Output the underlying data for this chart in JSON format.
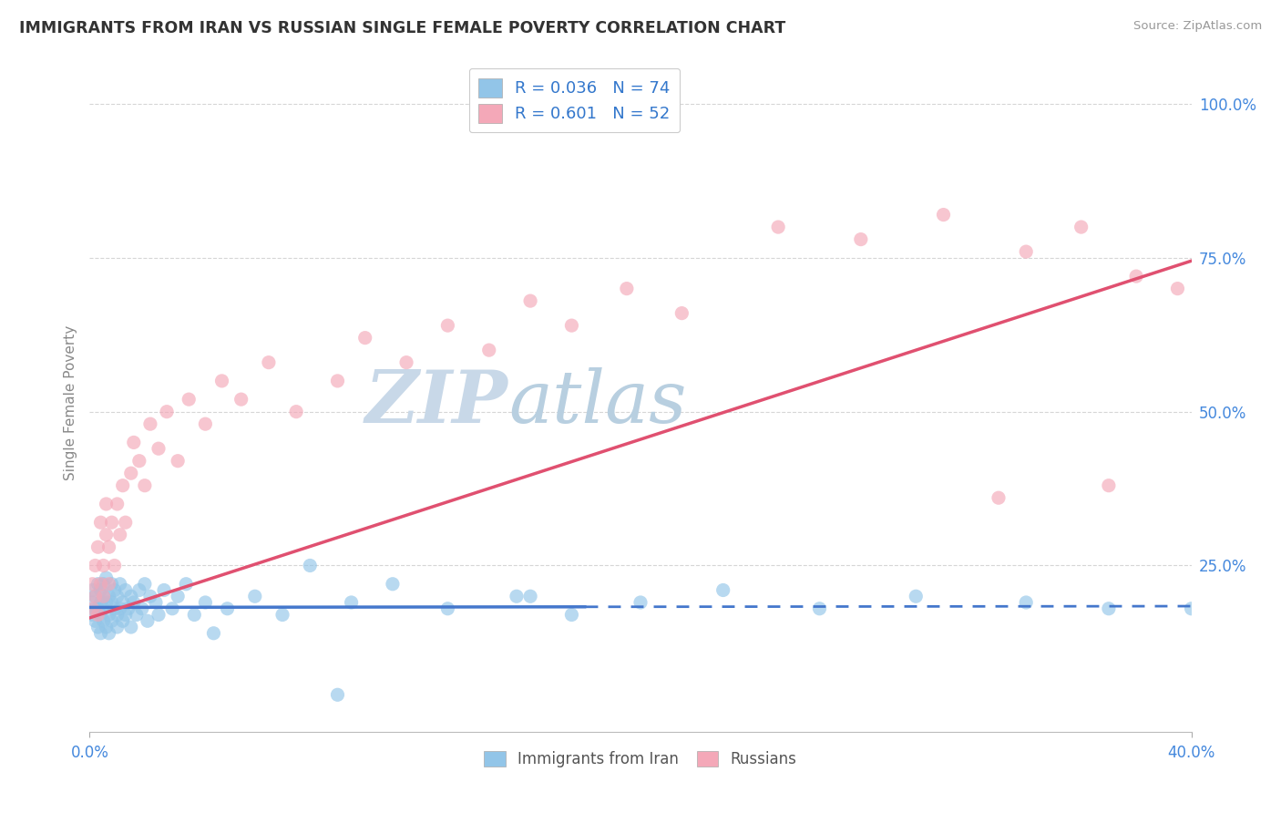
{
  "title": "IMMIGRANTS FROM IRAN VS RUSSIAN SINGLE FEMALE POVERTY CORRELATION CHART",
  "source": "Source: ZipAtlas.com",
  "xlabel_label": "Immigrants from Iran",
  "ylabel_label": "Single Female Poverty",
  "x_label_russia": "Russians",
  "xlim": [
    0.0,
    0.4
  ],
  "ylim": [
    -0.02,
    1.05
  ],
  "xtick_labels": [
    "0.0%",
    "40.0%"
  ],
  "ytick_labels": [
    "25.0%",
    "50.0%",
    "75.0%",
    "100.0%"
  ],
  "ytick_values": [
    0.25,
    0.5,
    0.75,
    1.0
  ],
  "legend_r1": "R = 0.036",
  "legend_n1": "N = 74",
  "legend_r2": "R = 0.601",
  "legend_n2": "N = 52",
  "iran_color": "#92c5e8",
  "russia_color": "#f4a8b8",
  "iran_line_color": "#4477cc",
  "iran_line_dashed_color": "#4477cc",
  "russia_line_color": "#e05070",
  "grid_color": "#cccccc",
  "watermark_color": "#dce8f0",
  "title_color": "#333333",
  "axis_label_color": "#4488dd",
  "tick_color": "#4488dd",
  "background_color": "#ffffff",
  "iran_line_solid_end": 0.18,
  "iran_line_intercept": 0.182,
  "iran_line_slope": 0.005,
  "russia_line_intercept": 0.165,
  "russia_line_slope": 1.45,
  "iran_scatter_x": [
    0.001,
    0.001,
    0.001,
    0.002,
    0.002,
    0.002,
    0.003,
    0.003,
    0.003,
    0.004,
    0.004,
    0.004,
    0.004,
    0.005,
    0.005,
    0.005,
    0.005,
    0.006,
    0.006,
    0.006,
    0.007,
    0.007,
    0.007,
    0.008,
    0.008,
    0.008,
    0.009,
    0.009,
    0.01,
    0.01,
    0.01,
    0.011,
    0.011,
    0.012,
    0.012,
    0.013,
    0.013,
    0.014,
    0.015,
    0.015,
    0.016,
    0.017,
    0.018,
    0.019,
    0.02,
    0.021,
    0.022,
    0.024,
    0.025,
    0.027,
    0.03,
    0.032,
    0.035,
    0.038,
    0.042,
    0.05,
    0.06,
    0.07,
    0.08,
    0.095,
    0.11,
    0.13,
    0.155,
    0.175,
    0.2,
    0.23,
    0.265,
    0.3,
    0.34,
    0.37,
    0.09,
    0.045,
    0.16,
    0.4
  ],
  "iran_scatter_y": [
    0.17,
    0.19,
    0.21,
    0.16,
    0.18,
    0.2,
    0.15,
    0.18,
    0.22,
    0.17,
    0.19,
    0.14,
    0.21,
    0.16,
    0.18,
    0.2,
    0.22,
    0.15,
    0.19,
    0.23,
    0.17,
    0.2,
    0.14,
    0.16,
    0.19,
    0.22,
    0.18,
    0.21,
    0.15,
    0.17,
    0.2,
    0.18,
    0.22,
    0.16,
    0.19,
    0.17,
    0.21,
    0.18,
    0.2,
    0.15,
    0.19,
    0.17,
    0.21,
    0.18,
    0.22,
    0.16,
    0.2,
    0.19,
    0.17,
    0.21,
    0.18,
    0.2,
    0.22,
    0.17,
    0.19,
    0.18,
    0.2,
    0.17,
    0.25,
    0.19,
    0.22,
    0.18,
    0.2,
    0.17,
    0.19,
    0.21,
    0.18,
    0.2,
    0.19,
    0.18,
    0.04,
    0.14,
    0.2,
    0.18
  ],
  "russia_scatter_x": [
    0.001,
    0.001,
    0.002,
    0.002,
    0.003,
    0.003,
    0.004,
    0.004,
    0.005,
    0.005,
    0.006,
    0.006,
    0.007,
    0.007,
    0.008,
    0.009,
    0.01,
    0.011,
    0.012,
    0.013,
    0.015,
    0.016,
    0.018,
    0.02,
    0.022,
    0.025,
    0.028,
    0.032,
    0.036,
    0.042,
    0.048,
    0.055,
    0.065,
    0.075,
    0.09,
    0.1,
    0.115,
    0.13,
    0.145,
    0.16,
    0.175,
    0.195,
    0.215,
    0.25,
    0.28,
    0.31,
    0.34,
    0.36,
    0.38,
    0.395,
    0.33,
    0.37
  ],
  "russia_scatter_y": [
    0.18,
    0.22,
    0.2,
    0.25,
    0.17,
    0.28,
    0.22,
    0.32,
    0.25,
    0.2,
    0.3,
    0.35,
    0.28,
    0.22,
    0.32,
    0.25,
    0.35,
    0.3,
    0.38,
    0.32,
    0.4,
    0.45,
    0.42,
    0.38,
    0.48,
    0.44,
    0.5,
    0.42,
    0.52,
    0.48,
    0.55,
    0.52,
    0.58,
    0.5,
    0.55,
    0.62,
    0.58,
    0.64,
    0.6,
    0.68,
    0.64,
    0.7,
    0.66,
    0.8,
    0.78,
    0.82,
    0.76,
    0.8,
    0.72,
    0.7,
    0.36,
    0.38
  ]
}
